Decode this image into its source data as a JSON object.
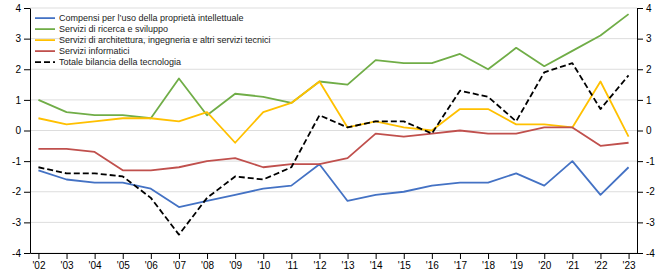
{
  "chart_data": {
    "type": "line",
    "x": [
      2002,
      2003,
      2004,
      2005,
      2006,
      2007,
      2008,
      2009,
      2010,
      2011,
      2012,
      2013,
      2014,
      2015,
      2016,
      2017,
      2018,
      2019,
      2020,
      2021,
      2022,
      2023
    ],
    "series": [
      {
        "name": "Compensi per l’uso della proprietà intellettuale",
        "color": "#4472C4",
        "line_style": "solid",
        "values": [
          -1.3,
          -1.6,
          -1.7,
          -1.7,
          -1.9,
          -2.5,
          -2.3,
          -2.1,
          -1.9,
          -1.8,
          -1.1,
          -2.3,
          -2.1,
          -2.0,
          -1.8,
          -1.7,
          -1.7,
          -1.4,
          -1.8,
          -1.0,
          -2.1,
          -1.2
        ]
      },
      {
        "name": "Servizi di ricerca e sviluppo",
        "color": "#70AD47",
        "line_style": "solid",
        "values": [
          1.0,
          0.6,
          0.5,
          0.5,
          0.4,
          1.7,
          0.5,
          1.2,
          1.1,
          0.9,
          1.6,
          1.5,
          2.3,
          2.2,
          2.2,
          2.5,
          2.0,
          2.7,
          2.1,
          2.6,
          3.1,
          3.8
        ]
      },
      {
        "name": "Servizi di architettura, ingegneria e altri servizi tecnici",
        "color": "#FFC000",
        "line_style": "solid",
        "values": [
          0.4,
          0.2,
          0.3,
          0.4,
          0.4,
          0.3,
          0.6,
          -0.4,
          0.6,
          0.9,
          1.6,
          0.1,
          0.3,
          0.1,
          0.0,
          0.7,
          0.7,
          0.2,
          0.2,
          0.1,
          1.6,
          -0.2
        ]
      },
      {
        "name": "Servizi informatici",
        "color": "#C0504D",
        "line_style": "solid",
        "values": [
          -0.6,
          -0.6,
          -0.7,
          -1.3,
          -1.3,
          -1.2,
          -1.0,
          -0.9,
          -1.2,
          -1.1,
          -1.1,
          -0.9,
          -0.1,
          -0.2,
          -0.1,
          0.0,
          -0.1,
          -0.1,
          0.1,
          0.1,
          -0.5,
          -0.4
        ]
      },
      {
        "name": "Totale bilancia della tecnologia",
        "color": "#000000",
        "line_style": "dashed",
        "values": [
          -1.2,
          -1.4,
          -1.4,
          -1.5,
          -2.2,
          -3.4,
          -2.2,
          -1.5,
          -1.6,
          -1.2,
          0.5,
          0.1,
          0.3,
          0.3,
          -0.1,
          1.3,
          1.1,
          0.3,
          1.9,
          2.2,
          0.7,
          1.8
        ]
      }
    ],
    "xlim": [
      2001.7,
      2023.3
    ],
    "xticks": [
      {
        "value": 2002,
        "label": "'02"
      },
      {
        "value": 2003,
        "label": "'03"
      },
      {
        "value": 2004,
        "label": "'04"
      },
      {
        "value": 2005,
        "label": "'05"
      },
      {
        "value": 2006,
        "label": "'06"
      },
      {
        "value": 2007,
        "label": "'07"
      },
      {
        "value": 2008,
        "label": "'08"
      },
      {
        "value": 2009,
        "label": "'09"
      },
      {
        "value": 2010,
        "label": "'10"
      },
      {
        "value": 2011,
        "label": "'11"
      },
      {
        "value": 2012,
        "label": "'12"
      },
      {
        "value": 2013,
        "label": "'13"
      },
      {
        "value": 2014,
        "label": "'14"
      },
      {
        "value": 2015,
        "label": "'15"
      },
      {
        "value": 2016,
        "label": "'16"
      },
      {
        "value": 2017,
        "label": "'17"
      },
      {
        "value": 2018,
        "label": "'18"
      },
      {
        "value": 2019,
        "label": "'19"
      },
      {
        "value": 2020,
        "label": "'20"
      },
      {
        "value": 2021,
        "label": "'21"
      },
      {
        "value": 2022,
        "label": "'22"
      },
      {
        "value": 2023,
        "label": "'23"
      }
    ],
    "ylim": [
      -4,
      4
    ],
    "yticks": [
      -4,
      -3,
      -2,
      -1,
      0,
      1,
      2,
      3,
      4
    ],
    "y2lim": [
      -4,
      4
    ],
    "y2ticks": [
      -4,
      -3,
      -2,
      -1,
      0,
      1,
      2,
      3,
      4
    ],
    "grid": true,
    "legend": "upper-left"
  }
}
